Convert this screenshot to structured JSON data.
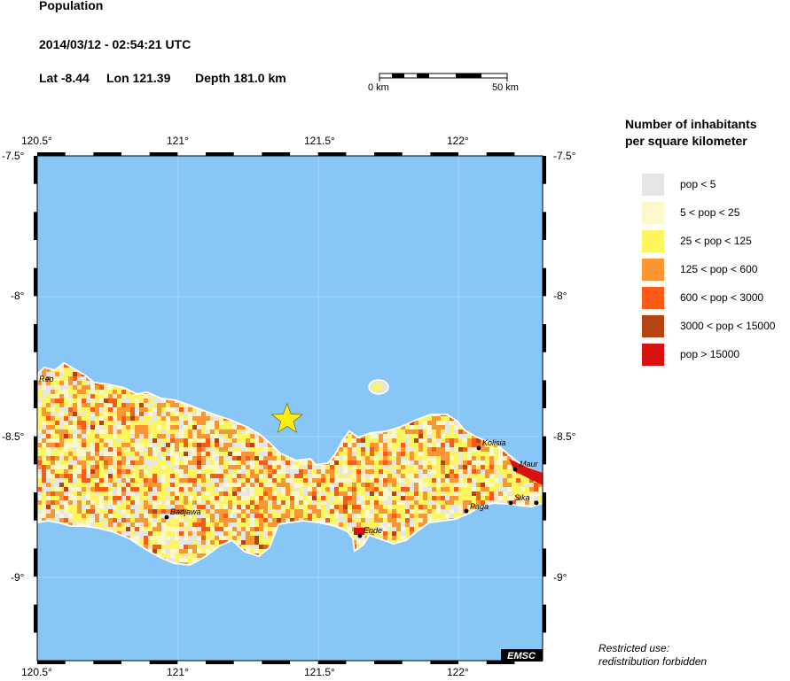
{
  "header": {
    "title": "Population",
    "datetime": "2014/03/12 - 02:54:21 UTC",
    "lat": "Lat -8.44",
    "lon": "Lon 121.39",
    "depth": "Depth 181.0 km"
  },
  "scale": {
    "left_label": "0 km",
    "right_label": "50 km"
  },
  "legend": {
    "title_line1": "Number of inhabitants",
    "title_line2": "per square kilometer",
    "items": [
      {
        "label": "pop < 5",
        "color": "#e6e6e6"
      },
      {
        "label": "5 < pop < 25",
        "color": "#fdf8c9"
      },
      {
        "label": "25 < pop < 125",
        "color": "#fdf65f"
      },
      {
        "label": "125 < pop < 600",
        "color": "#fb9633"
      },
      {
        "label": "600 < pop < 3000",
        "color": "#fb5b14"
      },
      {
        "label": "3000 < pop < 15000",
        "color": "#b54412"
      },
      {
        "label": "pop > 15000",
        "color": "#d8120e"
      }
    ]
  },
  "axes": {
    "lon_ticks": [
      "120.5°",
      "121°",
      "121.5°",
      "122°"
    ],
    "lat_ticks": [
      "-7.5°",
      "-8°",
      "-8.5°",
      "-9°"
    ]
  },
  "map": {
    "sea_color": "#87c6f5",
    "epicenter": {
      "lat": -8.44,
      "lon": 121.39,
      "color": "#ffeb16"
    },
    "places": [
      {
        "name": "Reo"
      },
      {
        "name": "Badjawa"
      },
      {
        "name": "Ende"
      },
      {
        "name": "Kolisia"
      },
      {
        "name": "Maur"
      },
      {
        "name": "Paga"
      },
      {
        "name": "Sika"
      }
    ]
  },
  "watermark": "EMSC",
  "footer": {
    "line1": "Restricted use:",
    "line2": "redistribution forbidden"
  }
}
